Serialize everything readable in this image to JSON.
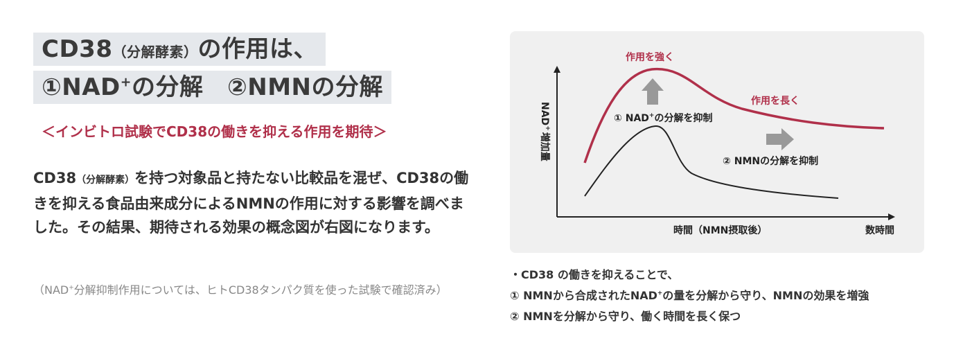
{
  "heading": {
    "line1_main": "CD38",
    "line1_paren": "（分解酵素）",
    "line1_rest": "の作用は、",
    "line2_pre": "①NAD",
    "line2_sup": "+",
    "line2_post": "の分解　②NMNの分解"
  },
  "subtitle": "＜インビトロ試験でCD38の働きを抑える作用を期待＞",
  "body": {
    "lead": "CD38",
    "paren": "（分解酵素）",
    "text": "を持つ対象品と持たない比較品を混ぜ、CD38の働きを抑える食品由来成分によるNMNの作用に対する影響を調べました。その結果、期待される効果の概念図が右図になります。"
  },
  "note": {
    "pre": "（NAD",
    "sup": "+",
    "post": "分解抑制作用については、ヒトCD38タンパク質を使った試験で確認済み）"
  },
  "chart_data": {
    "type": "line",
    "series": [
      {
        "color": "#b0304a",
        "shape": "rise-peak-long-tail"
      },
      {
        "color": "#222222",
        "shape": "rise-peak-fall"
      }
    ],
    "ylabel_pre": "NAD",
    "ylabel_sup": "+",
    "ylabel_post": "増加量",
    "xlabel": "時間（NMN摂取後）",
    "xlabel_right": "数時間",
    "annotations": {
      "strong": "作用を強く",
      "long": "作用を長く",
      "nad_pre": "① NAD",
      "nad_sup": "+",
      "nad_post": "の分解を抑制",
      "nmn": "② NMNの分解を抑制"
    },
    "colors": {
      "accent": "#b0304a",
      "arrow": "#999999",
      "axis": "#222222"
    }
  },
  "bullets": {
    "b1": "・CD38 の働きを抑えることで、",
    "b2_pre": "① NMNから合成されたNAD",
    "b2_sup": "+",
    "b2_post": "の量を分解から守り、NMNの効果を増強",
    "b3": "② NMNを分解から守り、働く時間を長く保つ"
  }
}
